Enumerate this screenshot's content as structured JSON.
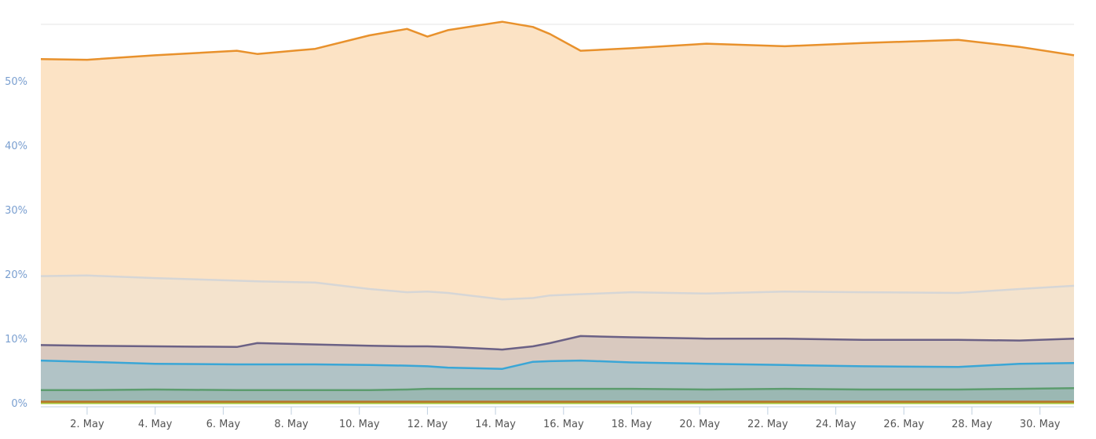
{
  "chart_data": {
    "type": "area",
    "stacking": "normal",
    "title": "",
    "xlabel": "",
    "ylabel": "",
    "ylim": [
      0,
      60
    ],
    "xlim": [
      0.64,
      31
    ],
    "grid": true,
    "y_ticks": [
      0,
      10,
      20,
      30,
      40,
      50
    ],
    "y_tick_labels": [
      "0%",
      "10%",
      "20%",
      "30%",
      "40%",
      "50%"
    ],
    "x_ticks": [
      2,
      4,
      6,
      8,
      10,
      12,
      14,
      16,
      18,
      20,
      22,
      24,
      26,
      28,
      30
    ],
    "x_tick_labels": [
      "2. May",
      "4. May",
      "6. May",
      "8. May",
      "10. May",
      "12. May",
      "14. May",
      "16. May",
      "18. May",
      "20. May",
      "22. May",
      "24. May",
      "26. May",
      "28. May",
      "30. May"
    ],
    "x": [
      0.64,
      2,
      4,
      6.4,
      7,
      8.7,
      10.3,
      11.4,
      12,
      12.6,
      14.2,
      15.1,
      15.6,
      16.5,
      18,
      20.2,
      22.5,
      24.8,
      27.6,
      29.4,
      31
    ],
    "series": [
      {
        "id": "yellow-green",
        "line": "#a6c43a",
        "fill": "#b9cf5a",
        "values": [
          0.1,
          0.1,
          0.1,
          0.1,
          0.1,
          0.1,
          0.1,
          0.1,
          0.1,
          0.1,
          0.1,
          0.1,
          0.1,
          0.1,
          0.1,
          0.1,
          0.1,
          0.1,
          0.1,
          0.1,
          0.1
        ]
      },
      {
        "id": "brown",
        "line": "#b8742a",
        "fill": "#c99a6a",
        "values": [
          0.2,
          0.2,
          0.2,
          0.2,
          0.2,
          0.2,
          0.2,
          0.2,
          0.2,
          0.2,
          0.2,
          0.2,
          0.2,
          0.2,
          0.2,
          0.2,
          0.2,
          0.2,
          0.2,
          0.2,
          0.2
        ]
      },
      {
        "id": "green",
        "line": "#5c9c6e",
        "fill": "#9bb8b3",
        "values": [
          1.8,
          1.8,
          1.9,
          1.8,
          1.8,
          1.8,
          1.8,
          1.9,
          2.0,
          2.0,
          2.0,
          2.0,
          2.0,
          2.0,
          2.0,
          1.9,
          2.0,
          1.9,
          1.9,
          2.0,
          2.1
        ]
      },
      {
        "id": "blue",
        "line": "#3aa6d6",
        "fill": "#b1c3c6",
        "values": [
          4.6,
          4.4,
          4.0,
          4.0,
          4.0,
          4.0,
          3.9,
          3.7,
          3.5,
          3.3,
          3.1,
          4.2,
          4.3,
          4.4,
          4.1,
          4.0,
          3.7,
          3.6,
          3.5,
          3.9,
          3.9
        ]
      },
      {
        "id": "purple",
        "line": "#6b6185",
        "fill": "#d9c9bf",
        "values": [
          2.4,
          2.5,
          2.7,
          2.7,
          3.3,
          3.1,
          3.0,
          3.0,
          3.1,
          3.2,
          3.0,
          2.4,
          2.8,
          3.8,
          3.9,
          3.9,
          4.1,
          4.1,
          4.2,
          3.6,
          3.8
        ]
      },
      {
        "id": "light-gray",
        "line": "#d6d6d6",
        "fill": "#f4e3cd",
        "values": [
          10.7,
          10.9,
          10.6,
          10.3,
          9.6,
          9.6,
          8.8,
          8.4,
          8.5,
          8.4,
          7.8,
          7.5,
          7.4,
          6.5,
          7.0,
          7.0,
          7.3,
          7.4,
          7.3,
          8.0,
          8.2
        ]
      },
      {
        "id": "orange",
        "line": "#e8912c",
        "fill": "#fce3c5",
        "values": [
          33.7,
          33.5,
          34.6,
          35.7,
          35.3,
          36.3,
          39.4,
          40.9,
          39.6,
          40.8,
          43.1,
          42.1,
          40.6,
          37.8,
          37.9,
          38.8,
          38.1,
          38.7,
          39.3,
          37.6,
          35.8
        ]
      }
    ]
  }
}
